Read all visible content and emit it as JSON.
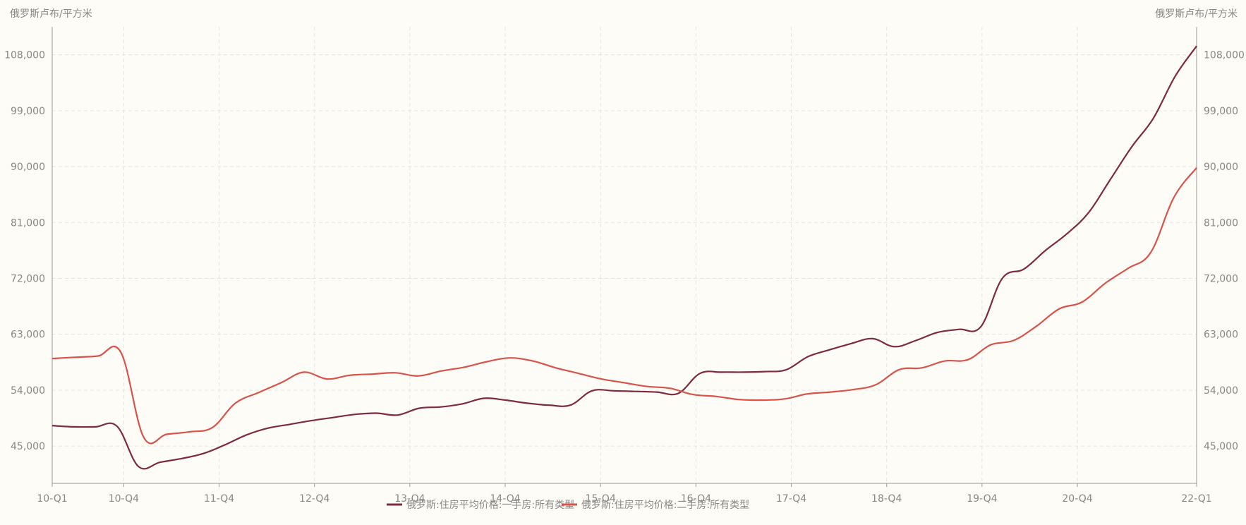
{
  "chart_data": {
    "type": "line",
    "left_axis_unit": "俄罗斯卢布/平方米",
    "right_axis_unit": "俄罗斯卢布/平方米",
    "ylim": [
      39000,
      112500
    ],
    "y_ticks": [
      "45,000",
      "54,000",
      "63,000",
      "72,000",
      "81,000",
      "90,000",
      "99,000",
      "108,000"
    ],
    "y_tick_values": [
      45000,
      54000,
      63000,
      72000,
      81000,
      90000,
      99000,
      108000
    ],
    "x_tick_labels": [
      "10-Q1",
      "10-Q4",
      "11-Q4",
      "12-Q4",
      "13-Q4",
      "14-Q4",
      "15-Q4",
      "16-Q4",
      "17-Q4",
      "18-Q4",
      "19-Q4",
      "20-Q4",
      "22-Q1"
    ],
    "x_tick_index": [
      0,
      3,
      7,
      11,
      15,
      19,
      23,
      27,
      31,
      35,
      39,
      43,
      48
    ],
    "grid": true,
    "legend_position": "bottom-center",
    "series": [
      {
        "name": "俄罗斯:住房平均价格:一手房:所有类型",
        "color": "#7e2a3f",
        "values": [
          48300,
          48100,
          48100,
          48200,
          41700,
          42400,
          43000,
          43800,
          45200,
          46800,
          47900,
          48500,
          49100,
          49600,
          50100,
          50300,
          50000,
          51100,
          51300,
          51800,
          52700,
          52400,
          51900,
          51600,
          51600,
          53900,
          53900,
          53800,
          53700,
          53500,
          56700,
          56900,
          56900,
          57000,
          57300,
          59400,
          60500,
          61500,
          62300,
          61000,
          62000,
          63300,
          63800,
          64200,
          72000,
          73500,
          76500,
          79200,
          82600,
          87900,
          93200,
          97800,
          104500,
          109400
        ]
      },
      {
        "name": "俄罗斯:住房平均价格:二手房:所有类型",
        "color": "#d9534a",
        "values": [
          59100,
          59300,
          59500,
          60100,
          46400,
          46900,
          47300,
          48000,
          51900,
          53600,
          55200,
          56900,
          55800,
          56400,
          56600,
          56800,
          56300,
          57100,
          57700,
          58600,
          59200,
          58700,
          57600,
          56700,
          55800,
          55200,
          54600,
          54300,
          53300,
          53000,
          52500,
          52400,
          52600,
          53400,
          53700,
          54100,
          54900,
          57300,
          57600,
          58700,
          58900,
          61300,
          62000,
          64300,
          67100,
          68200,
          71200,
          73600,
          76200,
          85000,
          89800
        ]
      }
    ]
  }
}
